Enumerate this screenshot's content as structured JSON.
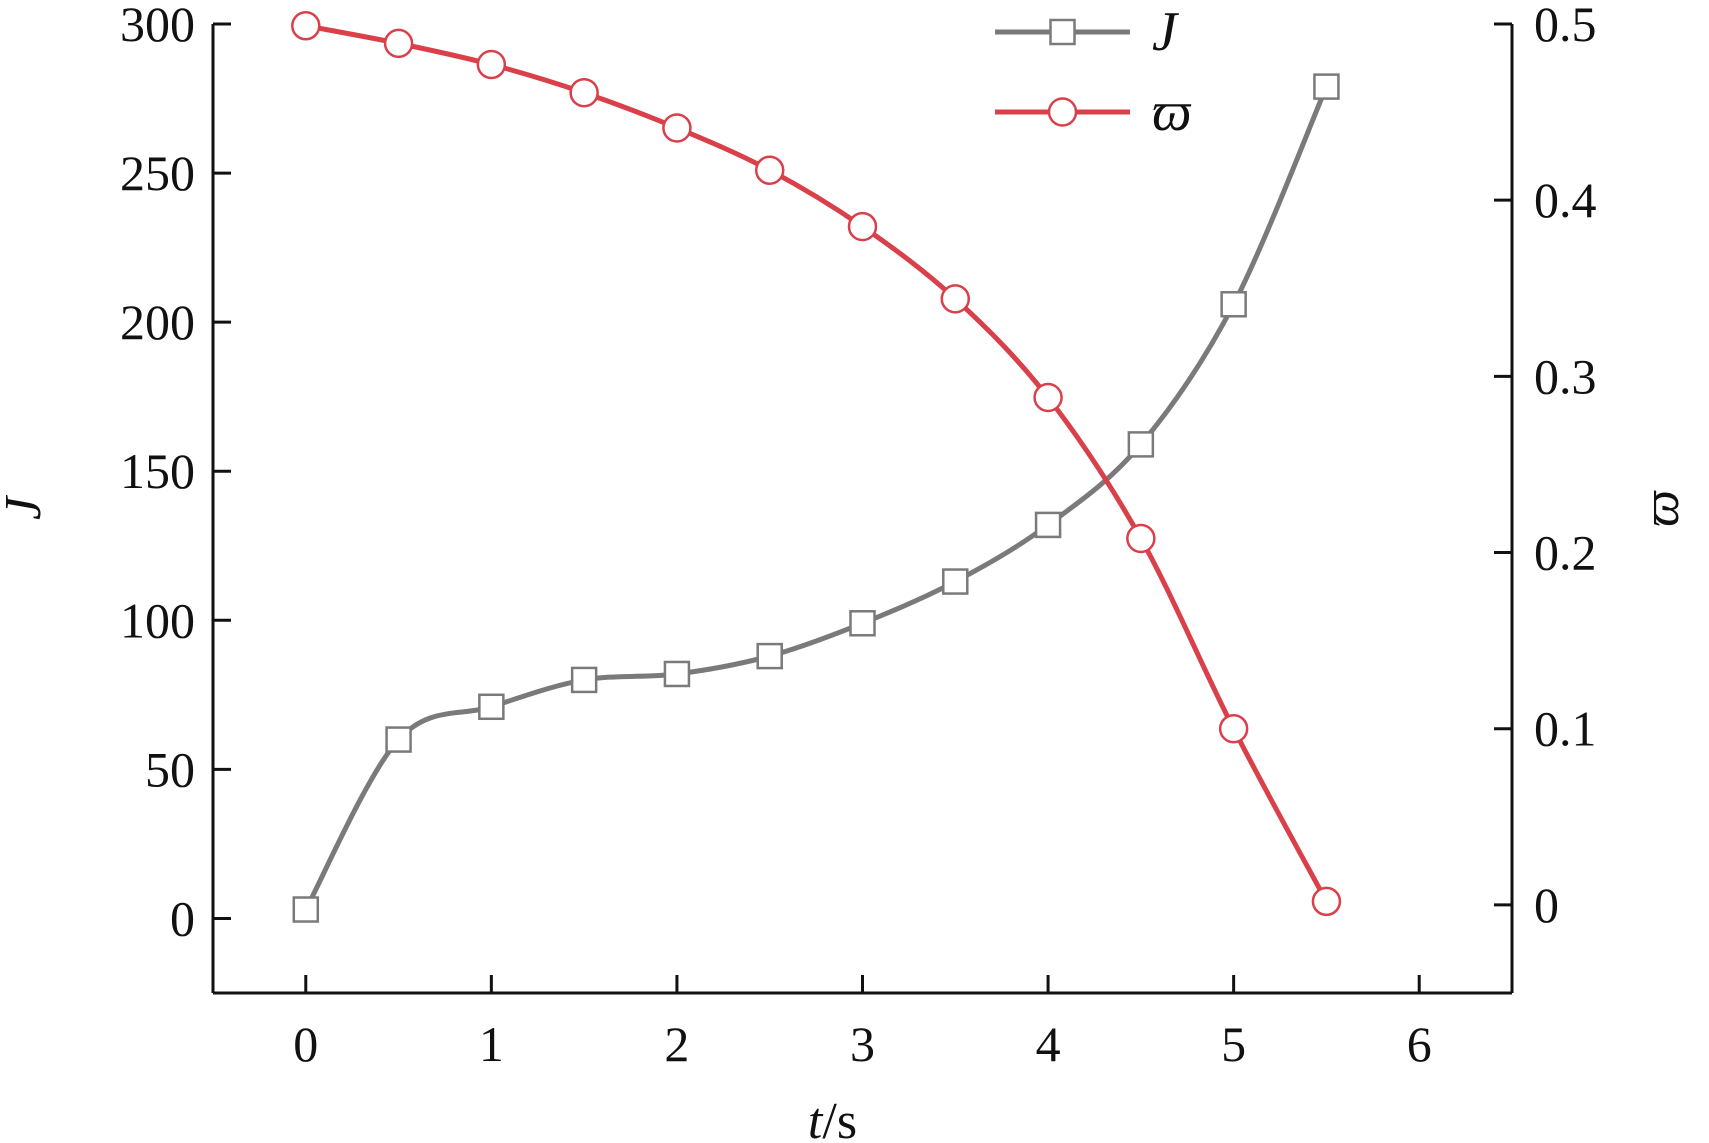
{
  "chart_data": {
    "type": "line",
    "xlabel": "t/s",
    "ylabel_left": "J",
    "ylabel_right": "ϖ",
    "xlim": [
      -0.5,
      6.5
    ],
    "ylim_left": [
      -25,
      300
    ],
    "ylim_right": [
      -0.05,
      0.5
    ],
    "x_ticks": [
      0,
      1,
      2,
      3,
      4,
      5,
      6
    ],
    "y_left_ticks": [
      0,
      50,
      100,
      150,
      200,
      250,
      300
    ],
    "y_right_ticks": [
      0,
      0.1,
      0.2,
      0.3,
      0.4,
      0.5
    ],
    "legend_position": "top-right",
    "grid": false,
    "series": [
      {
        "name": "J",
        "axis": "left",
        "color": "#7a7a7a",
        "marker": "square",
        "x": [
          0,
          0.5,
          1.0,
          1.5,
          2.0,
          2.5,
          3.0,
          3.5,
          4.0,
          4.5,
          5.0,
          5.5
        ],
        "values": [
          3,
          60,
          71,
          80,
          82,
          88,
          99,
          113,
          132,
          159,
          206,
          279
        ]
      },
      {
        "name": "ϖ",
        "axis": "right",
        "color": "#d9404a",
        "marker": "circle",
        "x": [
          0,
          0.5,
          1.0,
          1.5,
          2.0,
          2.5,
          3.0,
          3.5,
          4.0,
          4.5,
          5.0,
          5.5
        ],
        "values": [
          0.499,
          0.489,
          0.477,
          0.461,
          0.441,
          0.417,
          0.385,
          0.344,
          0.288,
          0.208,
          0.1,
          0.002
        ]
      }
    ]
  }
}
